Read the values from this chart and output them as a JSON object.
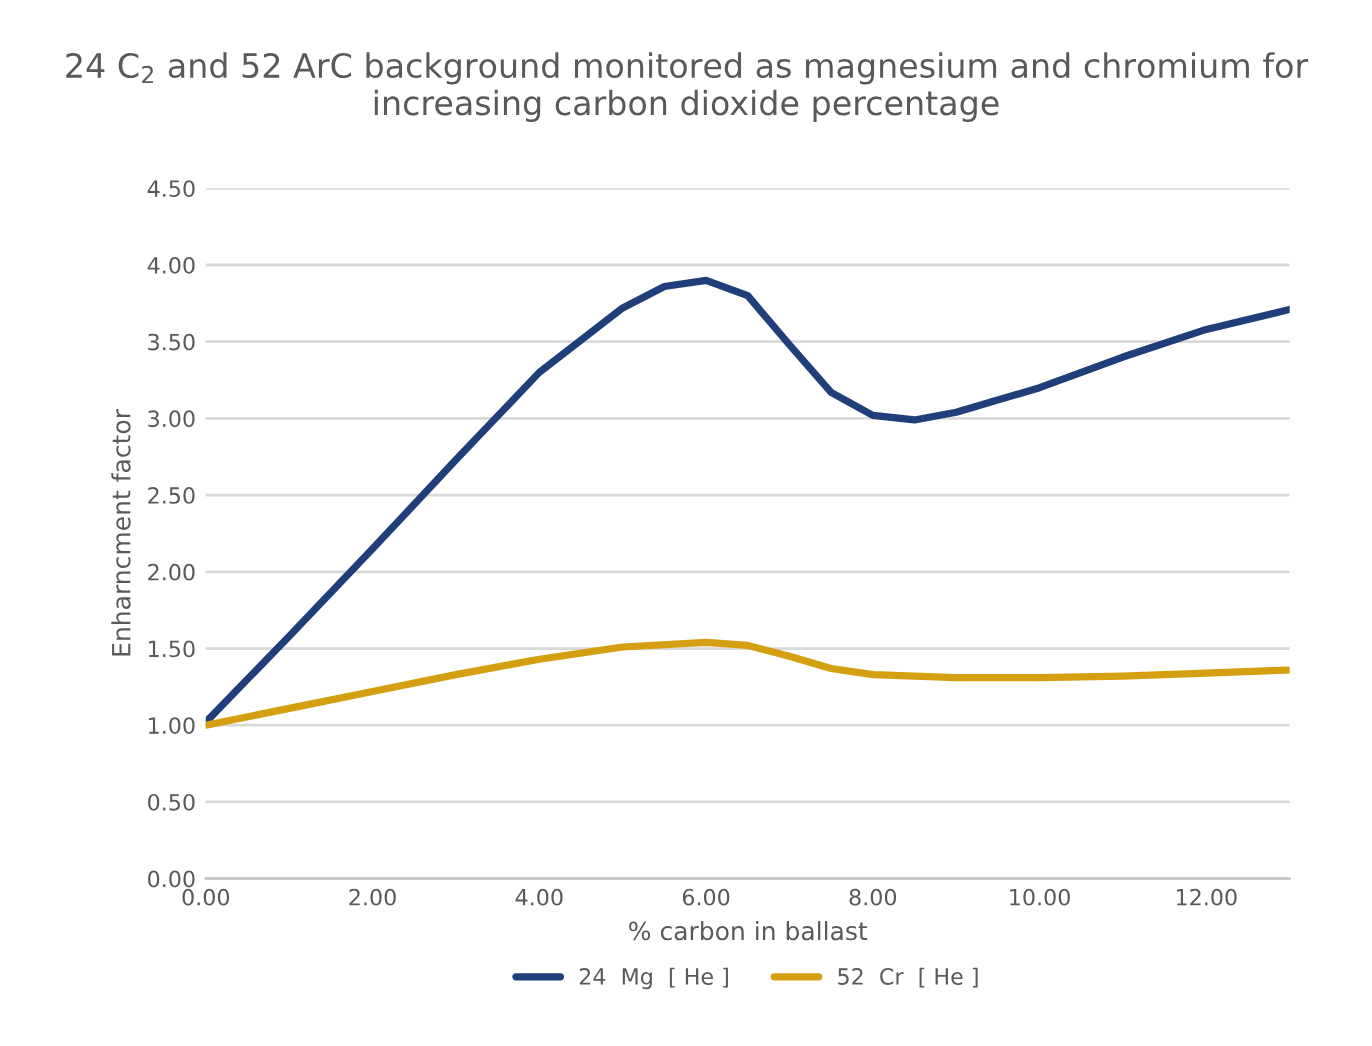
{
  "chart_data": {
    "type": "line",
    "title": "24 C$_{2}$ and 52 ArC background monitored as magnesium and chromium for increasing carbon dioxide percentage",
    "xlabel": "% carbon in ballast",
    "ylabel": "Enharncment factor",
    "series": [
      {
        "name": "24  Mg  [ He ]",
        "color": "#203f7a",
        "x": [
          0,
          1,
          2,
          3,
          4,
          5,
          5.5,
          6,
          6.5,
          7,
          7.5,
          8,
          8.5,
          9,
          10,
          11,
          12,
          13
        ],
        "values": [
          1.02,
          1.58,
          2.15,
          2.73,
          3.3,
          3.72,
          3.86,
          3.9,
          3.8,
          3.48,
          3.17,
          3.02,
          2.99,
          3.04,
          3.2,
          3.4,
          3.58,
          3.71
        ]
      },
      {
        "name": "52  Cr  [ He ]",
        "color": "#d4a011",
        "x": [
          0,
          1,
          2,
          3,
          4,
          5,
          6,
          6.5,
          7,
          7.5,
          8,
          9,
          10,
          11,
          12,
          13
        ],
        "values": [
          1.0,
          1.11,
          1.22,
          1.33,
          1.43,
          1.51,
          1.54,
          1.52,
          1.45,
          1.37,
          1.33,
          1.31,
          1.31,
          1.32,
          1.34,
          1.36
        ]
      }
    ],
    "xlim": [
      0,
      13
    ],
    "xticks": [
      {
        "value": 0,
        "label": "0.00"
      },
      {
        "value": 2,
        "label": "2.00"
      },
      {
        "value": 4,
        "label": "4.00"
      },
      {
        "value": 6,
        "label": "6.00"
      },
      {
        "value": 8,
        "label": "8.00"
      },
      {
        "value": 10,
        "label": "10.00"
      },
      {
        "value": 12,
        "label": "12.00"
      }
    ],
    "ylim": [
      0,
      4.5
    ],
    "yticks": [
      {
        "value": 0,
        "label": "0.00"
      },
      {
        "value": 0.5,
        "label": "0.50"
      },
      {
        "value": 1,
        "label": "1.00"
      },
      {
        "value": 1.5,
        "label": "1.50"
      },
      {
        "value": 2,
        "label": "2.00"
      },
      {
        "value": 2.5,
        "label": "2.50"
      },
      {
        "value": 3,
        "label": "3.00"
      },
      {
        "value": 3.5,
        "label": "3.50"
      },
      {
        "value": 4,
        "label": "4.00"
      },
      {
        "value": 4.5,
        "label": "4.50"
      }
    ],
    "grid": "y",
    "legend": "bottom",
    "marker": "none",
    "line_style": "solid"
  }
}
